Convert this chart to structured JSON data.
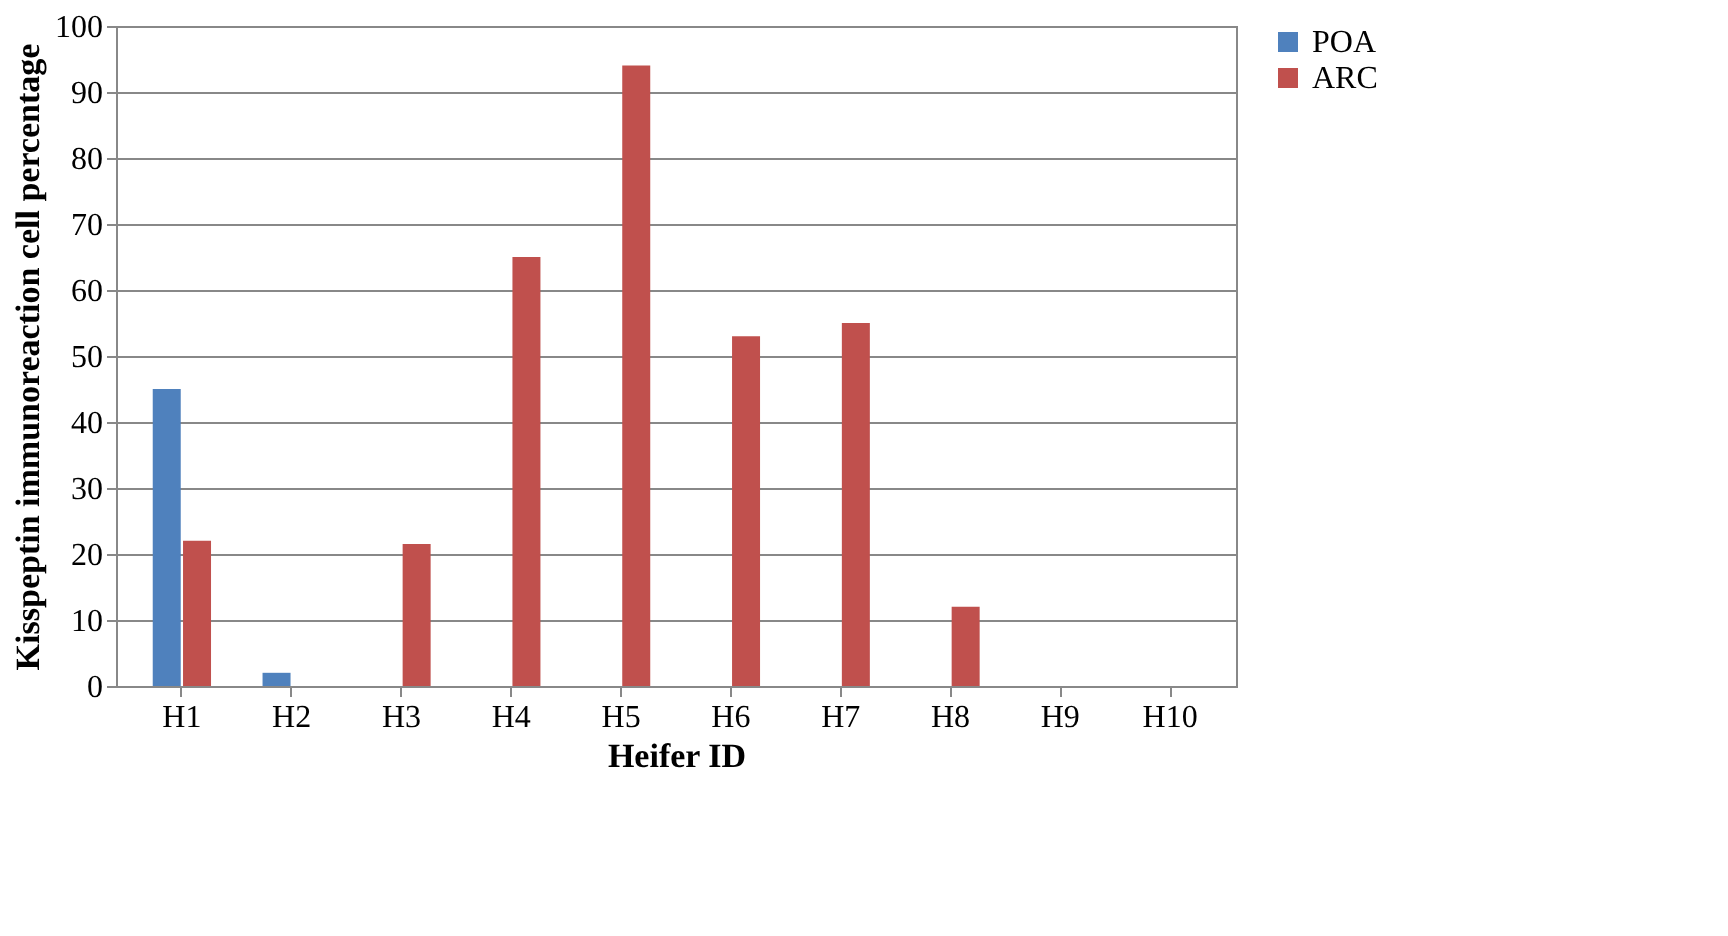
{
  "chart_data": {
    "type": "bar",
    "xlabel": "Heifer ID",
    "ylabel": "Kisspeptin immunoreaction cell percentage",
    "categories": [
      "H1",
      "H2",
      "H3",
      "H4",
      "H5",
      "H6",
      "H7",
      "H8",
      "H9",
      "H10"
    ],
    "series": [
      {
        "name": "POA",
        "color": "#4f81bd",
        "values": [
          45,
          2,
          0,
          0,
          0,
          0,
          0,
          0,
          0,
          0
        ]
      },
      {
        "name": "ARC",
        "color": "#c0504d",
        "values": [
          22,
          0,
          21.5,
          65,
          94,
          53,
          55,
          12,
          0,
          0
        ]
      }
    ],
    "ylim": [
      0,
      100
    ],
    "yticks": [
      0,
      10,
      20,
      30,
      40,
      50,
      60,
      70,
      80,
      90,
      100
    ],
    "grid": "y",
    "legend": "right"
  }
}
